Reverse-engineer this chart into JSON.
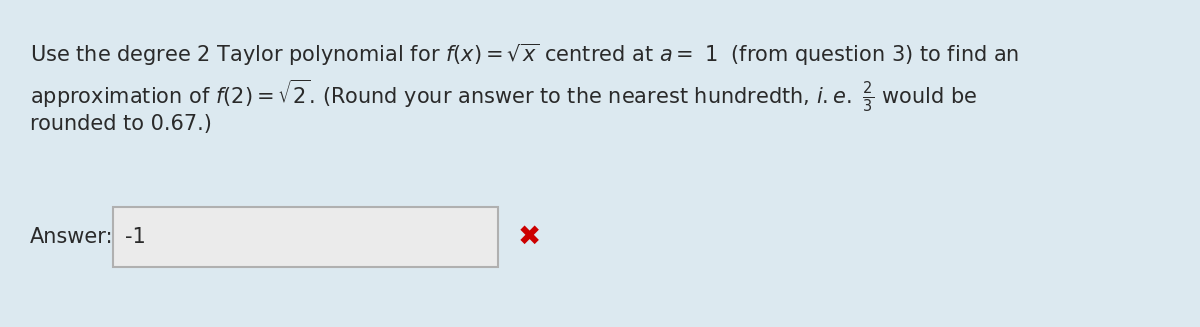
{
  "bg_color": "#dce9f0",
  "text_color": "#2a2a2a",
  "fig_width": 12.0,
  "fig_height": 3.27,
  "dpi": 100,
  "line1": "Use the degree 2 Taylor polynomial for $f(x) = \\sqrt{x}$ centred at $a = $ 1  (from question 3) to find an",
  "line2": "approximation of $f(2) = \\sqrt{2}$. (Round your answer to the nearest hundredth, $i.e.$ $\\frac{2}{3}$ would be",
  "line3": "rounded to 0.67.)",
  "answer_label": "Answer:",
  "answer_value": "-1",
  "font_size": 15,
  "box_bg": "#ebebeb",
  "box_border": "#b0b0b0",
  "cross_color": "#cc0000"
}
